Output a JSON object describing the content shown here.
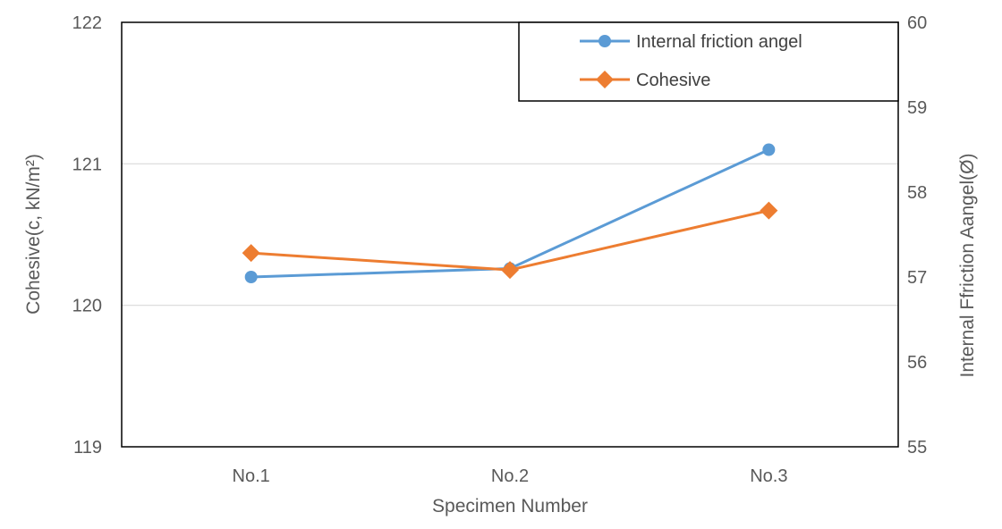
{
  "chart_data": {
    "type": "line",
    "categories": [
      "No.1",
      "No.2",
      "No.3"
    ],
    "xlabel": "Specimen Number",
    "ylabel_left": "Cohesive(c, kN/m²)",
    "ylabel_right": "Internal Ffriction Aangel(Ø)",
    "y_left": {
      "lim": [
        119,
        122
      ],
      "ticks": [
        "119",
        "120",
        "121",
        "122"
      ]
    },
    "y_right": {
      "lim": [
        55,
        60
      ],
      "ticks": [
        "55",
        "56",
        "57",
        "58",
        "59",
        "60"
      ]
    },
    "grid": true,
    "legend_position": "top-right",
    "series": [
      {
        "name": "Internal friction angel",
        "axis": "right",
        "marker": "circle",
        "color": "#5B9BD5",
        "values": [
          57.0,
          57.1,
          58.5
        ]
      },
      {
        "name": "Cohesive",
        "axis": "left",
        "marker": "diamond",
        "color": "#ED7D31",
        "values": [
          120.37,
          120.25,
          120.67
        ]
      }
    ]
  }
}
